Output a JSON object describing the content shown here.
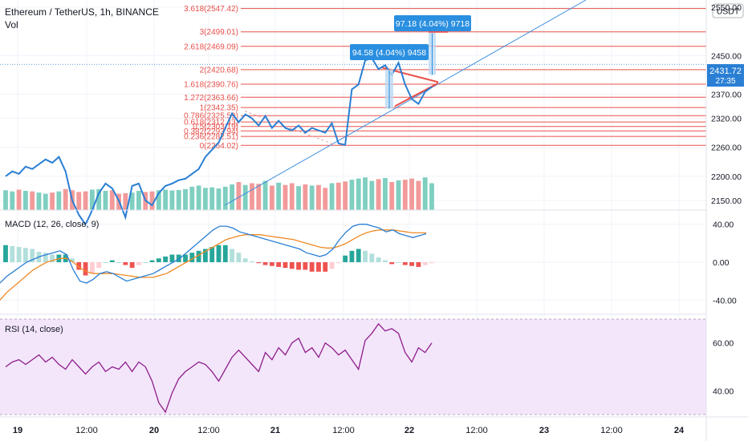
{
  "header": {
    "symbol": "Ethereum / TetherUS, 1h, BINANCE",
    "vol_label": "Vol",
    "currency_badge": "USDT"
  },
  "price_axis": {
    "ticks": [
      "2550.00",
      "2450.00",
      "2370.00",
      "2320.00",
      "2260.00",
      "2200.00",
      "2150.00"
    ],
    "current_price": "2431.72",
    "countdown": "27:35",
    "ylim": [
      2130,
      2565
    ]
  },
  "fib_levels": [
    {
      "label": "3.618(2547.42)",
      "value": 2547.42
    },
    {
      "label": "3(2499.01)",
      "value": 2499.01
    },
    {
      "label": "2.618(2469.09)",
      "value": 2469.09
    },
    {
      "label": "2(2420.68)",
      "value": 2420.68
    },
    {
      "label": "1.618(2390.76)",
      "value": 2390.76
    },
    {
      "label": "1.272(2363.66)",
      "value": 2363.66
    },
    {
      "label": "1(2342.35)",
      "value": 2342.35
    },
    {
      "label": "0.786(2325.59)",
      "value": 2325.59
    },
    {
      "label": "0.618(2312.43)",
      "value": 2312.43
    },
    {
      "label": "0.5(2303.19)",
      "value": 2303.19
    },
    {
      "label": "0.382(2293.94)",
      "value": 2293.94
    },
    {
      "label": "0.236(2282.51)",
      "value": 2282.51
    },
    {
      "label": "0(2264.02)",
      "value": 2264.02
    }
  ],
  "measure_boxes": [
    {
      "text": "97.18 (4.04%) 9718"
    },
    {
      "text": "94.58 (4.04%) 9458"
    }
  ],
  "macd": {
    "label": "MACD (12, 26, close, 9)",
    "ticks": [
      "40.00",
      "0.00",
      "-40.00"
    ],
    "ylim": [
      -55,
      55
    ]
  },
  "rsi": {
    "label": "RSI (14, close)",
    "ticks": [
      "60.00",
      "40.00"
    ],
    "ylim": [
      29,
      72
    ],
    "band": [
      30,
      70
    ]
  },
  "time_axis": {
    "labels": [
      "19",
      "12:00",
      "20",
      "12:00",
      "21",
      "12:00",
      "22",
      "12:00",
      "23",
      "12:00",
      "24"
    ]
  },
  "colors": {
    "price_line": "#2a7fd4",
    "fib_line": "#e8504a",
    "trend_line": "#3d8de0",
    "vol_up": "#7fcfc1",
    "vol_down": "#f29a9a",
    "macd_line": "#2a7fd4",
    "signal_line": "#f08a24",
    "hist_up_strong": "#26a69a",
    "hist_up_weak": "#b2dfdb",
    "hist_down_strong": "#ef5350",
    "hist_down_weak": "#ffcdd2",
    "rsi_line": "#8e1d8a",
    "rsi_band": "#f3e6fb",
    "measure_box": "#2a8fe0"
  },
  "chart_data": {
    "type": "line",
    "x": [
      0,
      1,
      2,
      3,
      4,
      5,
      6,
      7,
      8,
      9,
      10,
      11,
      12,
      13,
      14,
      15,
      16,
      17,
      18,
      19,
      20,
      21,
      22,
      23,
      24,
      25,
      26,
      27,
      28,
      29,
      30,
      31,
      32,
      33,
      34,
      35,
      36,
      37,
      38,
      39,
      40,
      41,
      42,
      43,
      44,
      45,
      46,
      47,
      48,
      49,
      50,
      51,
      52,
      53,
      54,
      55,
      56,
      57,
      58,
      59,
      60,
      61,
      62,
      63,
      64
    ],
    "series": [
      {
        "values": [
          2200,
          2210,
          2205,
          2220,
          2215,
          2225,
          2235,
          2228,
          2240,
          2210,
          2150,
          2120,
          2100,
          2130,
          2165,
          2185,
          2175,
          2150,
          2115,
          2180,
          2185,
          2150,
          2140,
          2165,
          2180,
          2185,
          2192,
          2195,
          2205,
          2215,
          2240,
          2255,
          2270,
          2300,
          2330,
          2312,
          2328,
          2320,
          2305,
          2325,
          2300,
          2315,
          2300,
          2295,
          2305,
          2290,
          2300,
          2295,
          2290,
          2310,
          2268,
          2265,
          2380,
          2390,
          2440,
          2445,
          2422,
          2430,
          2410,
          2435,
          2390,
          2360,
          2350,
          2375,
          2385
        ]
      },
      {
        "values": [
          170,
          160,
          175,
          165,
          160,
          150,
          140,
          150,
          160,
          180,
          170,
          155,
          160,
          175,
          180,
          165,
          170,
          140,
          145,
          150,
          165,
          155,
          160,
          170,
          175,
          168,
          172,
          180,
          200,
          210,
          190,
          195,
          185,
          200,
          220,
          240,
          215,
          230,
          225,
          250,
          210,
          235,
          215,
          230,
          205,
          220,
          210,
          215,
          190,
          230,
          235,
          245,
          260,
          270,
          280,
          250,
          265,
          275,
          240,
          255,
          260,
          270,
          250,
          280,
          230
        ]
      },
      {
        "values": [
          -22,
          -15,
          -10,
          -5,
          0,
          3,
          6,
          8,
          10,
          12,
          8,
          -8,
          -20,
          -22,
          -18,
          -12,
          -10,
          -12,
          -16,
          -20,
          -18,
          -16,
          -14,
          -12,
          -8,
          -4,
          0,
          4,
          10,
          16,
          22,
          28,
          34,
          38,
          38,
          36,
          32,
          30,
          28,
          26,
          24,
          22,
          20,
          18,
          16,
          14,
          10,
          8,
          6,
          8,
          14,
          24,
          32,
          38,
          40,
          40,
          38,
          36,
          32,
          34,
          30,
          28,
          26,
          28,
          30
        ]
      },
      {
        "values": [
          -40,
          -32,
          -26,
          -20,
          -14,
          -8,
          -4,
          0,
          2,
          4,
          4,
          0,
          -6,
          -10,
          -12,
          -12,
          -12,
          -12,
          -13,
          -14,
          -15,
          -16,
          -16,
          -16,
          -14,
          -12,
          -8,
          -4,
          0,
          4,
          8,
          12,
          16,
          20,
          24,
          26,
          28,
          29,
          29,
          29,
          28,
          27,
          26,
          25,
          24,
          22,
          20,
          18,
          16,
          15,
          15,
          17,
          20,
          24,
          28,
          31,
          33,
          34,
          34,
          34,
          33,
          32,
          31,
          31,
          31
        ]
      },
      {
        "values": [
          50,
          52,
          53,
          51,
          53,
          55,
          52,
          54,
          51,
          49,
          53,
          50,
          47,
          50,
          52,
          48,
          50,
          49,
          52,
          48,
          52,
          50,
          44,
          35,
          31,
          39,
          45,
          48,
          50,
          52,
          51,
          48,
          44,
          49,
          54,
          57,
          54,
          51,
          48,
          56,
          53,
          58,
          55,
          60,
          62,
          56,
          58,
          54,
          60,
          58,
          55,
          57,
          53,
          49,
          61,
          64,
          68,
          65,
          66,
          64,
          56,
          52,
          58,
          56,
          60
        ]
      }
    ],
    "series_types": [
      "price",
      "volume",
      "macd",
      "signal",
      "rsi"
    ]
  }
}
